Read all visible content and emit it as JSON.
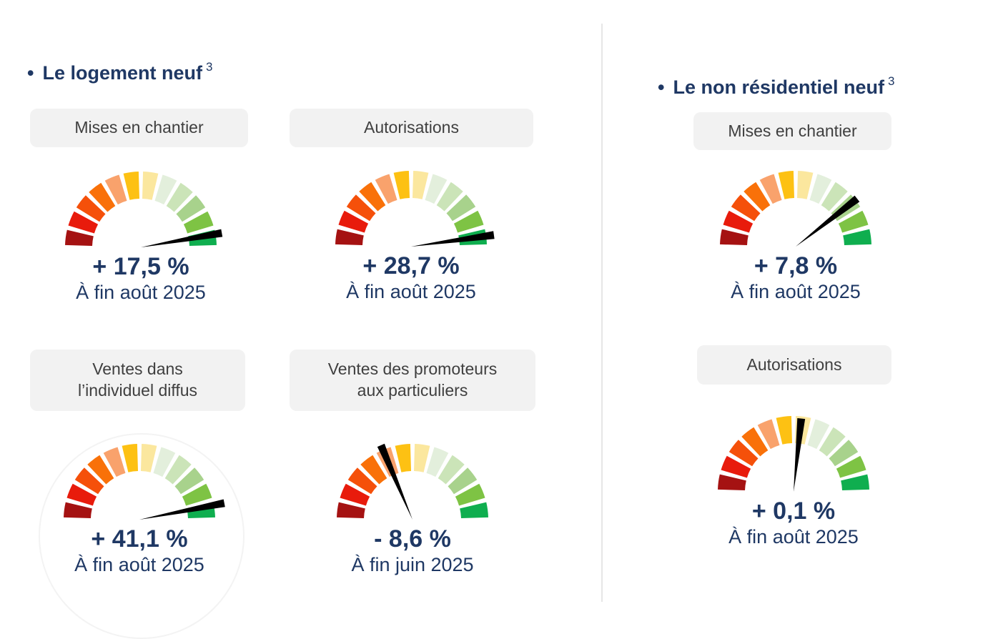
{
  "page": {
    "divider_color": "#E6E6E6",
    "background": "#FFFFFF"
  },
  "palette": {
    "navy": "#1F3864",
    "label_bg": "#F2F2F2",
    "label_text": "#3F3F3F",
    "needle": "#000000"
  },
  "sections": [
    {
      "bullet": "•",
      "title": "Le logement neuf",
      "footnote": "3"
    },
    {
      "bullet": "•",
      "title": "Le non résidentiel neuf",
      "footnote": "3"
    }
  ],
  "chart_data": {
    "type": "gauge",
    "description": "Semi-circular 12-segment red-to-green speedometer gauges with black needles",
    "segment_colors": [
      "#A51212",
      "#E81B0C",
      "#F5500A",
      "#F97109",
      "#F9A26C",
      "#FDC113",
      "#FBE79E",
      "#E3EFDC",
      "#CBE4B8",
      "#A8D28C",
      "#7EC344",
      "#0FAE4F"
    ],
    "geometry": {
      "start_angle_deg": 180,
      "end_angle_deg": 0,
      "segment_count": 12,
      "gap_deg": 3.4,
      "outer_radius": 106,
      "inner_radius": 68,
      "needle_half_width": 5.5
    },
    "gauges": [
      {
        "section": "Le logement neuf",
        "label": "Mises en chantier",
        "label_lines": [
          "Mises en chantier"
        ],
        "value_pct": 17.5,
        "value_display": "+ 17,5 %",
        "period": "À fin août 2025",
        "needle_angle_deg": 10,
        "needle_length": 115
      },
      {
        "section": "Le logement neuf",
        "label": "Autorisations",
        "label_lines": [
          "Autorisations"
        ],
        "value_pct": 28.7,
        "value_display": "+ 28,7 %",
        "period": "À fin août 2025",
        "needle_angle_deg": 8,
        "needle_length": 117
      },
      {
        "section": "Le logement neuf",
        "label": "Ventes dans l’individuel diffus",
        "label_lines": [
          "Ventes dans",
          "l’individuel diffus"
        ],
        "value_pct": 41.1,
        "value_display": "+ 41,1 %",
        "period": "À fin août 2025",
        "needle_angle_deg": 11,
        "needle_length": 121
      },
      {
        "section": "Le logement neuf",
        "label": "Ventes des promoteurs aux particuliers",
        "label_lines": [
          "Ventes des promoteurs",
          "aux particuliers"
        ],
        "value_pct": -8.6,
        "value_display": "- 8,6 %",
        "period": "À fin juin 2025",
        "needle_angle_deg": 113,
        "needle_length": 113
      },
      {
        "section": "Le non résidentiel neuf",
        "label": "Mises en chantier",
        "label_lines": [
          "Mises en chantier"
        ],
        "value_pct": 7.8,
        "value_display": "+ 7,8 %",
        "period": "À fin août 2025",
        "needle_angle_deg": 38,
        "needle_length": 109
      },
      {
        "section": "Le non résidentiel neuf",
        "label": "Autorisations",
        "label_lines": [
          "Autorisations"
        ],
        "value_pct": 0.1,
        "value_display": "+ 0,1 %",
        "period": "À fin août 2025",
        "needle_angle_deg": 84,
        "needle_length": 103
      }
    ]
  }
}
